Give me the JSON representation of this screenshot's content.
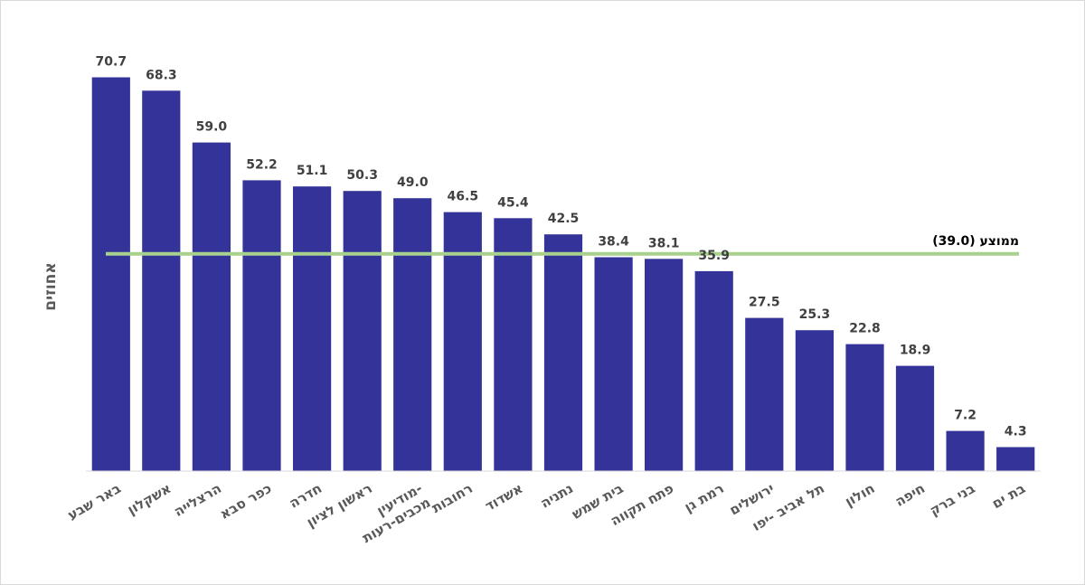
{
  "chart_data": {
    "type": "bar",
    "ylabel": "אחוזים",
    "categories": [
      "באר שבע",
      "אשקלון",
      "הרצלייה",
      "כפר סבא",
      "חדרה",
      "ראשון לציון",
      "מודיעין-מכבים-רעות",
      "רחובות",
      "אשדוד",
      "נתניה",
      "בית שמש",
      "פתח תקווה",
      "רמת גן",
      "ירושלים",
      "תל אביב -יפו",
      "חולון",
      "חיפה",
      "בני ברק",
      "בת ים"
    ],
    "values": [
      70.7,
      68.3,
      59.0,
      52.2,
      51.1,
      50.3,
      49.0,
      46.5,
      45.4,
      42.5,
      38.4,
      38.1,
      35.9,
      27.5,
      25.3,
      22.8,
      18.9,
      7.2,
      4.3
    ],
    "value_labels": [
      "70.7",
      "68.3",
      "59.0",
      "52.2",
      "51.1",
      "50.3",
      "49.0",
      "46.5",
      "45.4",
      "42.5",
      "38.4",
      "38.1",
      "35.9",
      "27.5",
      "25.3",
      "22.8",
      "18.9",
      "7.2",
      "4.3"
    ],
    "ylim": [
      0,
      75
    ],
    "grid": false,
    "average": {
      "value": 39.0,
      "label": "ממוצע (39.0)"
    },
    "colors": {
      "bar": "#333399",
      "average_line": "#a9d18e"
    }
  }
}
